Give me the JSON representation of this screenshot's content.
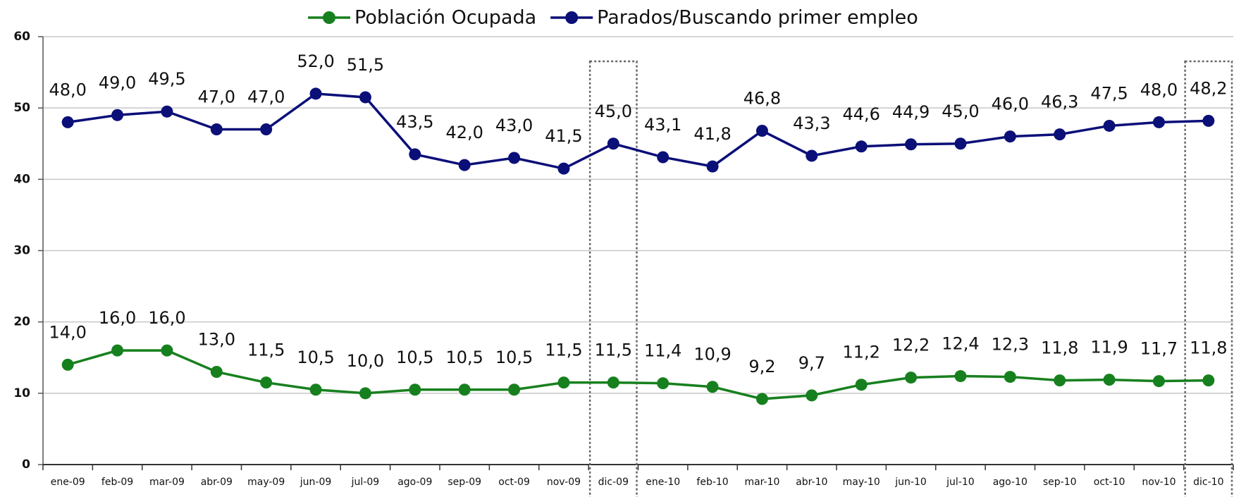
{
  "chart_data": {
    "type": "line",
    "categories": [
      "ene-09",
      "feb-09",
      "mar-09",
      "abr-09",
      "may-09",
      "jun-09",
      "jul-09",
      "ago-09",
      "sep-09",
      "oct-09",
      "nov-09",
      "dic-09",
      "ene-10",
      "feb-10",
      "mar-10",
      "abr-10",
      "may-10",
      "jun-10",
      "jul-10",
      "ago-10",
      "sep-10",
      "oct-10",
      "nov-10",
      "dic-10"
    ],
    "series": [
      {
        "name": "Población Ocupada",
        "color": "#17801e",
        "values": [
          14,
          16,
          16,
          13,
          11.5,
          10.5,
          10,
          10.5,
          10.5,
          10.5,
          11.5,
          11.5,
          11.4,
          10.9,
          9.2,
          9.7,
          11.2,
          12.2,
          12.4,
          12.3,
          11.8,
          11.9,
          11.7,
          11.8
        ],
        "value_labels": [
          "14,0",
          "16,0",
          "16,0",
          "13,0",
          "11,5",
          "10,5",
          "10,0",
          "10,5",
          "10,5",
          "10,5",
          "11,5",
          "11,5",
          "11,4",
          "10,9",
          "9,2",
          "9,7",
          "11,2",
          "12,2",
          "12,4",
          "12,3",
          "11,8",
          "11,9",
          "11,7",
          "11,8"
        ]
      },
      {
        "name": "Parados/Buscando primer empleo",
        "color": "#0b0f78",
        "values": [
          48,
          49,
          49.5,
          47,
          47,
          52,
          51.5,
          43.5,
          42,
          43,
          41.5,
          45,
          43.1,
          41.8,
          46.8,
          43.3,
          44.6,
          44.9,
          45,
          46,
          46.3,
          47.5,
          48,
          48.2
        ],
        "value_labels": [
          "48,0",
          "49,0",
          "49,5",
          "47,0",
          "47,0",
          "52,0",
          "51,5",
          "43,5",
          "42,0",
          "43,0",
          "41,5",
          "45,0",
          "43,1",
          "41,8",
          "46,8",
          "43,3",
          "44,6",
          "44,9",
          "45,0",
          "46,0",
          "46,3",
          "47,5",
          "48,0",
          "48,2"
        ]
      }
    ],
    "ylim": [
      0,
      60
    ],
    "yticks": [
      0,
      10,
      20,
      30,
      40,
      50,
      60
    ],
    "grid": true,
    "legend": "top"
  }
}
